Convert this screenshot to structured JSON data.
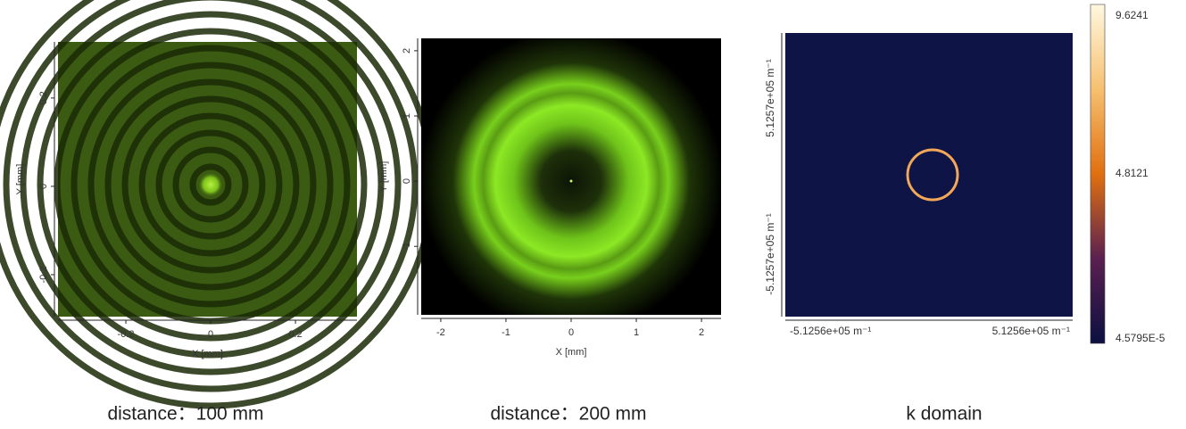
{
  "panels": [
    {
      "caption": "distance：100 mm",
      "xlabel": "X [mm]",
      "ylabel": "Y [mm]",
      "xlim": [
        -0.36,
        0.345
      ],
      "ylim": [
        -0.295,
        0.327
      ],
      "xticks": [
        -0.2,
        0,
        0.2
      ],
      "yticks": [
        -0.2,
        0,
        0.2
      ]
    },
    {
      "caption": "distance：200 mm",
      "xlabel": "X [mm]",
      "ylabel": "Y [mm]",
      "xlim": [
        -2.3,
        2.3
      ],
      "ylim": [
        -2.05,
        2.19
      ],
      "xticks": [
        -2,
        -1,
        0,
        1,
        2
      ],
      "yticks": [
        -1,
        0,
        1,
        2
      ]
    },
    {
      "caption": "k domain",
      "xtick_labels": [
        "-5.1256e+05 m⁻¹",
        "5.1256e+05 m⁻¹"
      ],
      "ytick_labels": [
        "5.1257e+05 m⁻¹",
        "-5.1257e+05 m⁻¹"
      ],
      "colorbar_labels": [
        "9.6241",
        "4.8121",
        "4.5795E-5"
      ]
    }
  ]
}
